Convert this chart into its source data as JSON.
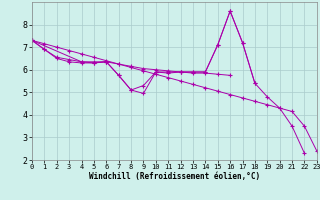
{
  "background_color": "#cff0eb",
  "line_color": "#aa00aa",
  "grid_color": "#aacccc",
  "xlabel": "Windchill (Refroidissement éolien,°C)",
  "xlim": [
    0,
    23
  ],
  "ylim": [
    2,
    9
  ],
  "yticks": [
    2,
    3,
    4,
    5,
    6,
    7,
    8
  ],
  "xticks": [
    0,
    1,
    2,
    3,
    4,
    5,
    6,
    7,
    8,
    9,
    10,
    11,
    12,
    13,
    14,
    15,
    16,
    17,
    18,
    19,
    20,
    21,
    22,
    23
  ],
  "series": [
    {
      "x": [
        0,
        1,
        2,
        3,
        4,
        5,
        6,
        7,
        8,
        9,
        10,
        11,
        12,
        13,
        14,
        15,
        16,
        17,
        18,
        19,
        20,
        21,
        22
      ],
      "y": [
        7.3,
        6.9,
        6.5,
        6.35,
        6.3,
        6.3,
        6.35,
        5.75,
        5.1,
        4.95,
        5.9,
        5.85,
        5.9,
        5.9,
        5.9,
        7.1,
        8.6,
        7.2,
        5.4,
        4.8,
        4.3,
        3.5,
        2.3
      ]
    },
    {
      "x": [
        0,
        1,
        2,
        3,
        4,
        5,
        6,
        7,
        8,
        9,
        10,
        11,
        12,
        13,
        14,
        15,
        16
      ],
      "y": [
        7.3,
        6.9,
        6.55,
        6.45,
        6.35,
        6.35,
        6.35,
        6.25,
        6.15,
        6.05,
        6.0,
        5.95,
        5.9,
        5.85,
        5.85,
        5.8,
        5.75
      ]
    },
    {
      "x": [
        0,
        4,
        5,
        6,
        7,
        8,
        9,
        10,
        11,
        12,
        13,
        14,
        15,
        16,
        17,
        18
      ],
      "y": [
        7.3,
        6.35,
        6.3,
        6.35,
        5.75,
        5.1,
        5.3,
        5.9,
        5.9,
        5.9,
        5.9,
        5.9,
        7.1,
        8.6,
        7.2,
        5.4
      ]
    },
    {
      "x": [
        0,
        1,
        2,
        3,
        4,
        5,
        6,
        7,
        8,
        9,
        10,
        11,
        12,
        13,
        14,
        15,
        16,
        17,
        18,
        19,
        20,
        21,
        22,
        23
      ],
      "y": [
        7.3,
        7.15,
        7.0,
        6.85,
        6.7,
        6.55,
        6.4,
        6.25,
        6.1,
        5.95,
        5.8,
        5.65,
        5.5,
        5.35,
        5.2,
        5.05,
        4.9,
        4.75,
        4.6,
        4.45,
        4.3,
        4.15,
        3.5,
        2.4
      ]
    }
  ]
}
